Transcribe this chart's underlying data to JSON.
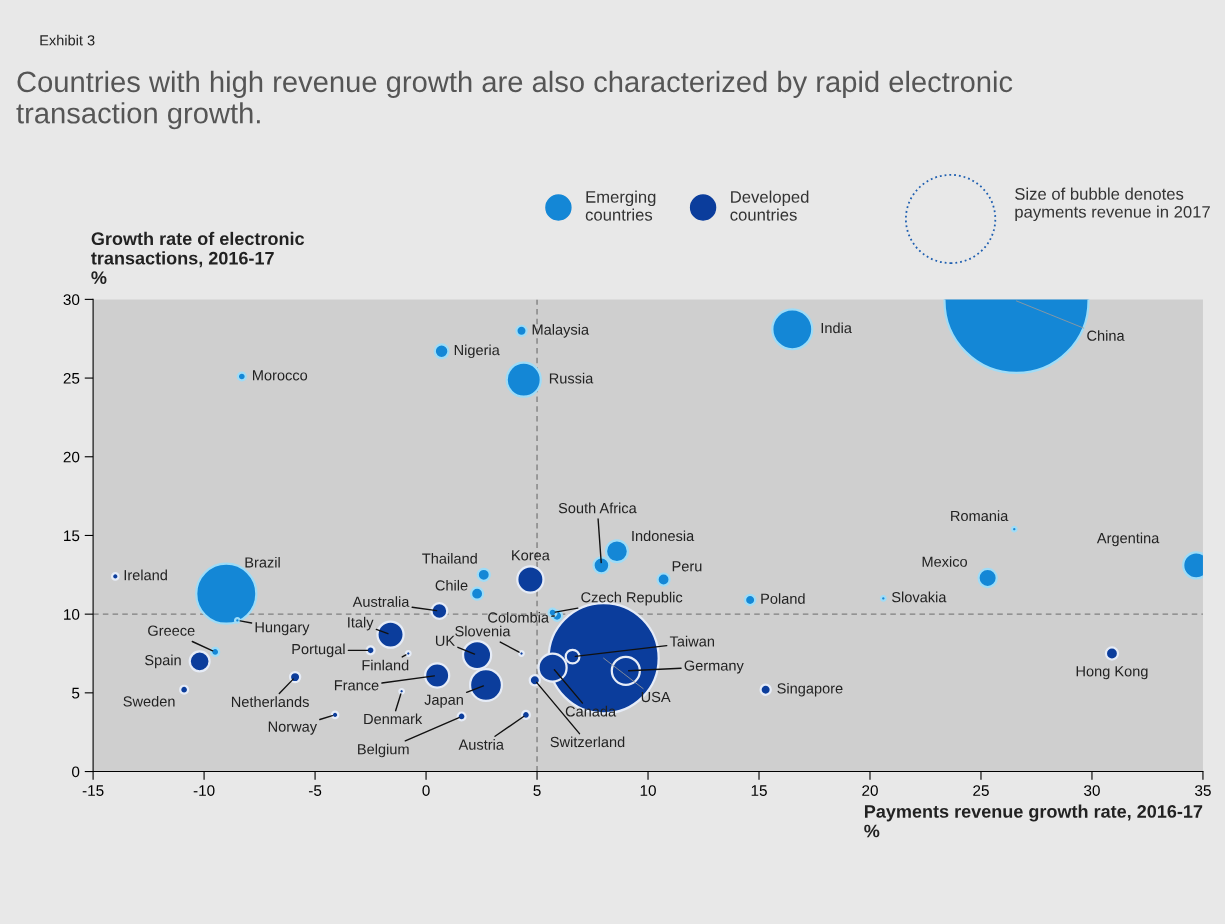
{
  "chart_data": {
    "type": "bubble",
    "title": "Countries with high revenue growth are also characterized by rapid electronic transaction growth.",
    "xlabel": "Payments revenue growth rate, 2016-17\n%",
    "ylabel": "Growth rate of electronic\ntransactions, 2016-17\n%",
    "xlim": [
      -15,
      35
    ],
    "xticks": [
      -15,
      -10,
      -5,
      0,
      5,
      10,
      15,
      20,
      25,
      30,
      35
    ],
    "ylim": [
      0,
      30
    ],
    "yticks": [
      0,
      5,
      10,
      15,
      20,
      25,
      30
    ],
    "grid": false,
    "legend": "top right",
    "marker": "circle",
    "ref_lines": [
      {
        "axis": "x",
        "value": 5,
        "color": "#808080",
        "line_style": "dashed"
      },
      {
        "axis": "y",
        "value": 10,
        "color": "#808080",
        "line_style": "dashed"
      }
    ],
    "series": [
      {
        "name": "Emerging\ncountries",
        "color": "#1487d6",
        "x": [
          26.6,
          16.5,
          4.3,
          0.7,
          -8.3,
          4.4,
          26.5,
          34.7,
          25.3,
          20.6,
          14.6,
          10.7,
          8.6,
          7.9,
          2.6,
          2.3,
          -9.0,
          5.9,
          5.7,
          -9.5,
          -8.5
        ],
        "values": [
          29.9,
          28.1,
          28.0,
          26.7,
          25.1,
          24.9,
          15.4,
          13.1,
          12.3,
          11.0,
          10.9,
          12.2,
          14.0,
          13.1,
          12.5,
          11.3,
          11.3,
          9.9,
          10.1,
          7.6,
          9.6
        ],
        "sizes": [
          1,
          0.077,
          0.005,
          0.009,
          0.003,
          0.056,
          0.001,
          0.033,
          0.016,
          0.001,
          0.005,
          0.007,
          0.023,
          0.012,
          0.007,
          0.007,
          0.174,
          0.005,
          0.003,
          0.003,
          0.001
        ]
      },
      {
        "name": "Developed\ncountries",
        "color": "#0b3d9c",
        "x": [
          4.7,
          0.6,
          -1.6,
          -10.2,
          -10.9,
          -2.5,
          -5.9,
          0.5,
          2.3,
          2.7,
          -1.1,
          -4.1,
          1.6,
          4.5,
          4.9,
          4.3,
          -0.8,
          5.7,
          8.0,
          6.6,
          9.0,
          15.3,
          30.9,
          -14.0
        ],
        "values": [
          12.2,
          10.2,
          8.7,
          7.0,
          5.2,
          7.7,
          6.0,
          6.1,
          7.4,
          5.5,
          5.1,
          3.6,
          3.5,
          3.6,
          5.8,
          7.5,
          7.5,
          6.6,
          7.2,
          7.3,
          6.4,
          5.2,
          7.5,
          12.4
        ],
        "sizes": [
          0.033,
          0.012,
          0.033,
          0.019,
          0.003,
          0.003,
          0.005,
          0.028,
          0.038,
          0.049,
          0.001,
          0.002,
          0.003,
          0.003,
          0.005,
          0.001,
          0.001,
          0.038,
          0.584,
          0.009,
          0.038,
          0.005,
          0.007,
          0.002
        ]
      }
    ],
    "annotations": [
      "Exhibit 3",
      "Size of bubble denotes payments revenue in 2017",
      {
        "text": "China",
        "x": 26.6,
        "y": 29.9
      },
      {
        "text": "India",
        "x": 16.5,
        "y": 28.1
      },
      {
        "text": "Malaysia",
        "x": 4.3,
        "y": 28.0
      },
      {
        "text": "Nigeria",
        "x": 0.7,
        "y": 26.7
      },
      {
        "text": "Morocco",
        "x": -8.3,
        "y": 25.1
      },
      {
        "text": "Russia",
        "x": 4.4,
        "y": 24.9
      },
      {
        "text": "Romania",
        "x": 26.5,
        "y": 15.4
      },
      {
        "text": "Argentina",
        "x": 34.7,
        "y": 13.1
      },
      {
        "text": "Mexico",
        "x": 25.3,
        "y": 12.3
      },
      {
        "text": "Slovakia",
        "x": 20.6,
        "y": 11.0
      },
      {
        "text": "Poland",
        "x": 14.6,
        "y": 10.9
      },
      {
        "text": "Peru",
        "x": 10.7,
        "y": 12.2
      },
      {
        "text": "Indonesia",
        "x": 8.6,
        "y": 14.0
      },
      {
        "text": "South Africa",
        "x": 7.9,
        "y": 13.1
      },
      {
        "text": "Thailand",
        "x": 2.6,
        "y": 12.5
      },
      {
        "text": "Chile",
        "x": 2.3,
        "y": 11.3
      },
      {
        "text": "Brazil",
        "x": -9.0,
        "y": 11.3
      },
      {
        "text": "Colombia",
        "x": 5.9,
        "y": 9.9
      },
      {
        "text": "Czech Republic",
        "x": 5.7,
        "y": 10.1
      },
      {
        "text": "Greece",
        "x": -9.5,
        "y": 7.6
      },
      {
        "text": "Hungary",
        "x": -8.5,
        "y": 9.6
      },
      {
        "text": "Korea",
        "x": 4.7,
        "y": 12.2
      },
      {
        "text": "Australia",
        "x": 0.6,
        "y": 10.2
      },
      {
        "text": "Italy",
        "x": -1.6,
        "y": 8.7
      },
      {
        "text": "Spain",
        "x": -10.2,
        "y": 7.0
      },
      {
        "text": "Sweden",
        "x": -10.9,
        "y": 5.2
      },
      {
        "text": "Portugal",
        "x": -2.5,
        "y": 7.7
      },
      {
        "text": "Netherlands",
        "x": -5.9,
        "y": 6.0
      },
      {
        "text": "France",
        "x": 0.5,
        "y": 6.1
      },
      {
        "text": "UK",
        "x": 2.3,
        "y": 7.4
      },
      {
        "text": "Japan",
        "x": 2.7,
        "y": 5.5
      },
      {
        "text": "Denmark",
        "x": -1.1,
        "y": 5.1
      },
      {
        "text": "Norway",
        "x": -4.1,
        "y": 3.6
      },
      {
        "text": "Belgium",
        "x": 1.6,
        "y": 3.5
      },
      {
        "text": "Austria",
        "x": 4.5,
        "y": 3.6
      },
      {
        "text": "Switzerland",
        "x": 4.9,
        "y": 5.8
      },
      {
        "text": "Slovenia",
        "x": 4.3,
        "y": 7.5
      },
      {
        "text": "Finland",
        "x": -0.8,
        "y": 7.5
      },
      {
        "text": "Canada",
        "x": 5.7,
        "y": 6.6
      },
      {
        "text": "USA",
        "x": 8.0,
        "y": 7.2
      },
      {
        "text": "Taiwan",
        "x": 6.6,
        "y": 7.3
      },
      {
        "text": "Germany",
        "x": 9.0,
        "y": 6.4
      },
      {
        "text": "Singapore",
        "x": 15.3,
        "y": 5.2
      },
      {
        "text": "Hong Kong",
        "x": 30.9,
        "y": 7.5
      },
      {
        "text": "Ireland",
        "x": -14.0,
        "y": 12.4
      }
    ]
  }
}
